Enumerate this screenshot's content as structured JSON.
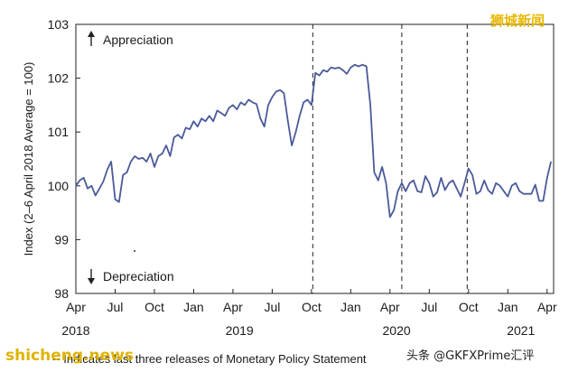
{
  "chart_data": {
    "type": "line",
    "ylabel": "Index (2–6 April 2018 Average = 100)",
    "ylim": [
      98,
      103
    ],
    "yticks": [
      98,
      99,
      100,
      101,
      102,
      103
    ],
    "xlim": [
      0,
      36.5
    ],
    "month_ticks": [
      {
        "x": 0,
        "label": "Apr"
      },
      {
        "x": 3,
        "label": "Jul"
      },
      {
        "x": 6,
        "label": "Oct"
      },
      {
        "x": 9,
        "label": "Jan"
      },
      {
        "x": 12,
        "label": "Apr"
      },
      {
        "x": 15,
        "label": "Jul"
      },
      {
        "x": 18,
        "label": "Oct"
      },
      {
        "x": 21,
        "label": "Jan"
      },
      {
        "x": 24,
        "label": "Apr"
      },
      {
        "x": 27,
        "label": "Jul"
      },
      {
        "x": 30,
        "label": "Oct"
      },
      {
        "x": 33,
        "label": "Jan"
      },
      {
        "x": 36,
        "label": "Apr"
      }
    ],
    "year_labels": [
      {
        "x": 0,
        "label": "2018"
      },
      {
        "x": 12.5,
        "label": "2019"
      },
      {
        "x": 24.5,
        "label": "2020"
      },
      {
        "x": 34,
        "label": "2021"
      }
    ],
    "vlines": [
      18.1,
      24.9,
      29.9
    ],
    "grid": false,
    "series": [
      {
        "color": "#4a5a9a",
        "x": [
          0,
          0.3,
          0.6,
          0.9,
          1.2,
          1.5,
          1.8,
          2.1,
          2.4,
          2.7,
          3.0,
          3.3,
          3.6,
          3.9,
          4.2,
          4.5,
          4.8,
          5.1,
          5.4,
          5.7,
          6.0,
          6.3,
          6.6,
          6.9,
          7.2,
          7.5,
          7.8,
          8.1,
          8.4,
          8.7,
          9.0,
          9.3,
          9.6,
          9.9,
          10.2,
          10.5,
          10.8,
          11.1,
          11.4,
          11.7,
          12.0,
          12.3,
          12.6,
          12.9,
          13.2,
          13.5,
          13.8,
          14.1,
          14.4,
          14.7,
          15.0,
          15.3,
          15.6,
          15.9,
          16.2,
          16.5,
          16.8,
          17.1,
          17.4,
          17.7,
          18.0,
          18.3,
          18.6,
          18.9,
          19.2,
          19.5,
          19.8,
          20.1,
          20.4,
          20.7,
          21.0,
          21.3,
          21.6,
          21.9,
          22.2,
          22.5,
          22.8,
          23.1,
          23.4,
          23.7,
          24.0,
          24.3,
          24.6,
          24.9,
          25.2,
          25.5,
          25.8,
          26.1,
          26.4,
          26.7,
          27.0,
          27.3,
          27.6,
          27.9,
          28.2,
          28.5,
          28.8,
          29.1,
          29.4,
          29.7,
          30.0,
          30.3,
          30.6,
          30.9,
          31.2,
          31.5,
          31.8,
          32.1,
          32.4,
          32.7,
          33.0,
          33.3,
          33.6,
          33.9,
          34.2,
          34.5,
          34.8,
          35.1,
          35.4,
          35.7,
          36.0,
          36.3
        ],
        "y": [
          100.0,
          100.1,
          100.15,
          99.95,
          100.0,
          99.82,
          99.95,
          100.08,
          100.3,
          100.45,
          99.75,
          99.7,
          100.2,
          100.25,
          100.45,
          100.55,
          100.5,
          100.52,
          100.45,
          100.6,
          100.35,
          100.55,
          100.6,
          100.75,
          100.55,
          100.9,
          100.95,
          100.88,
          101.08,
          101.05,
          101.2,
          101.1,
          101.25,
          101.2,
          101.3,
          101.2,
          101.4,
          101.35,
          101.3,
          101.45,
          101.5,
          101.42,
          101.55,
          101.5,
          101.6,
          101.55,
          101.52,
          101.25,
          101.1,
          101.5,
          101.65,
          101.75,
          101.78,
          101.72,
          101.2,
          100.75,
          101.0,
          101.3,
          101.55,
          101.6,
          101.5,
          102.1,
          102.05,
          102.15,
          102.12,
          102.2,
          102.18,
          102.2,
          102.15,
          102.08,
          102.2,
          102.25,
          102.22,
          102.25,
          102.22,
          101.5,
          100.25,
          100.1,
          100.35,
          100.05,
          99.42,
          99.55,
          99.9,
          100.05,
          99.9,
          100.05,
          100.1,
          99.9,
          99.88,
          100.18,
          100.05,
          99.8,
          99.88,
          100.15,
          99.92,
          100.05,
          100.1,
          99.95,
          99.8,
          100.05,
          100.32,
          100.2,
          99.85,
          99.9,
          100.1,
          99.92,
          99.85,
          100.05,
          100.0,
          99.9,
          99.8,
          100.0,
          100.05,
          99.9,
          99.85,
          99.85,
          99.85,
          100.02,
          99.72,
          99.72,
          100.15,
          100.45
        ]
      }
    ],
    "annotations": {
      "appreciation": "Appreciation",
      "depreciation": "Depreciation"
    },
    "note": "-- Indicates last three releases of Monetary Policy Statement"
  },
  "watermarks": {
    "top_right": "狮城新闻",
    "bottom_left": "shicheng.news",
    "bottom_right": "头条 @GKFXPrime汇评"
  }
}
